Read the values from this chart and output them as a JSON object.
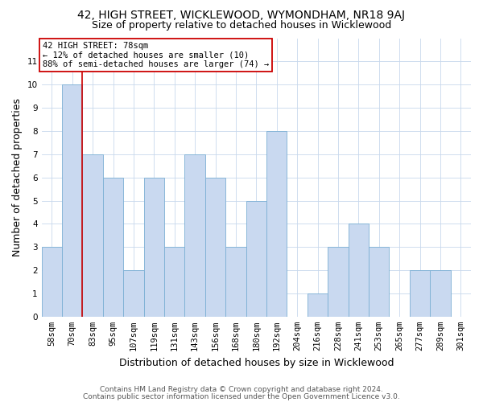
{
  "title1": "42, HIGH STREET, WICKLEWOOD, WYMONDHAM, NR18 9AJ",
  "title2": "Size of property relative to detached houses in Wicklewood",
  "xlabel": "Distribution of detached houses by size in Wicklewood",
  "ylabel": "Number of detached properties",
  "categories": [
    "58sqm",
    "70sqm",
    "83sqm",
    "95sqm",
    "107sqm",
    "119sqm",
    "131sqm",
    "143sqm",
    "156sqm",
    "168sqm",
    "180sqm",
    "192sqm",
    "204sqm",
    "216sqm",
    "228sqm",
    "241sqm",
    "253sqm",
    "265sqm",
    "277sqm",
    "289sqm",
    "301sqm"
  ],
  "values": [
    3,
    10,
    7,
    6,
    2,
    6,
    3,
    7,
    6,
    3,
    5,
    8,
    0,
    1,
    3,
    4,
    3,
    0,
    2,
    2,
    0
  ],
  "bar_color": "#c9d9f0",
  "bar_edge_color": "#7bafd4",
  "vline_color": "#cc0000",
  "vline_x_index": 1,
  "annotation_line1": "42 HIGH STREET: 78sqm",
  "annotation_line2": "← 12% of detached houses are smaller (10)",
  "annotation_line3": "88% of semi-detached houses are larger (74) →",
  "annotation_box_color": "#cc0000",
  "ylim": [
    0,
    12
  ],
  "yticks": [
    0,
    1,
    2,
    3,
    4,
    5,
    6,
    7,
    8,
    9,
    10,
    11
  ],
  "footnote1": "Contains HM Land Registry data © Crown copyright and database right 2024.",
  "footnote2": "Contains public sector information licensed under the Open Government Licence v3.0.",
  "bg_color": "#ffffff",
  "grid_color": "#c8d8ec",
  "title1_fontsize": 10,
  "title2_fontsize": 9,
  "axis_label_fontsize": 9,
  "tick_fontsize": 7.5,
  "annotation_fontsize": 7.5,
  "footnote_fontsize": 6.5
}
